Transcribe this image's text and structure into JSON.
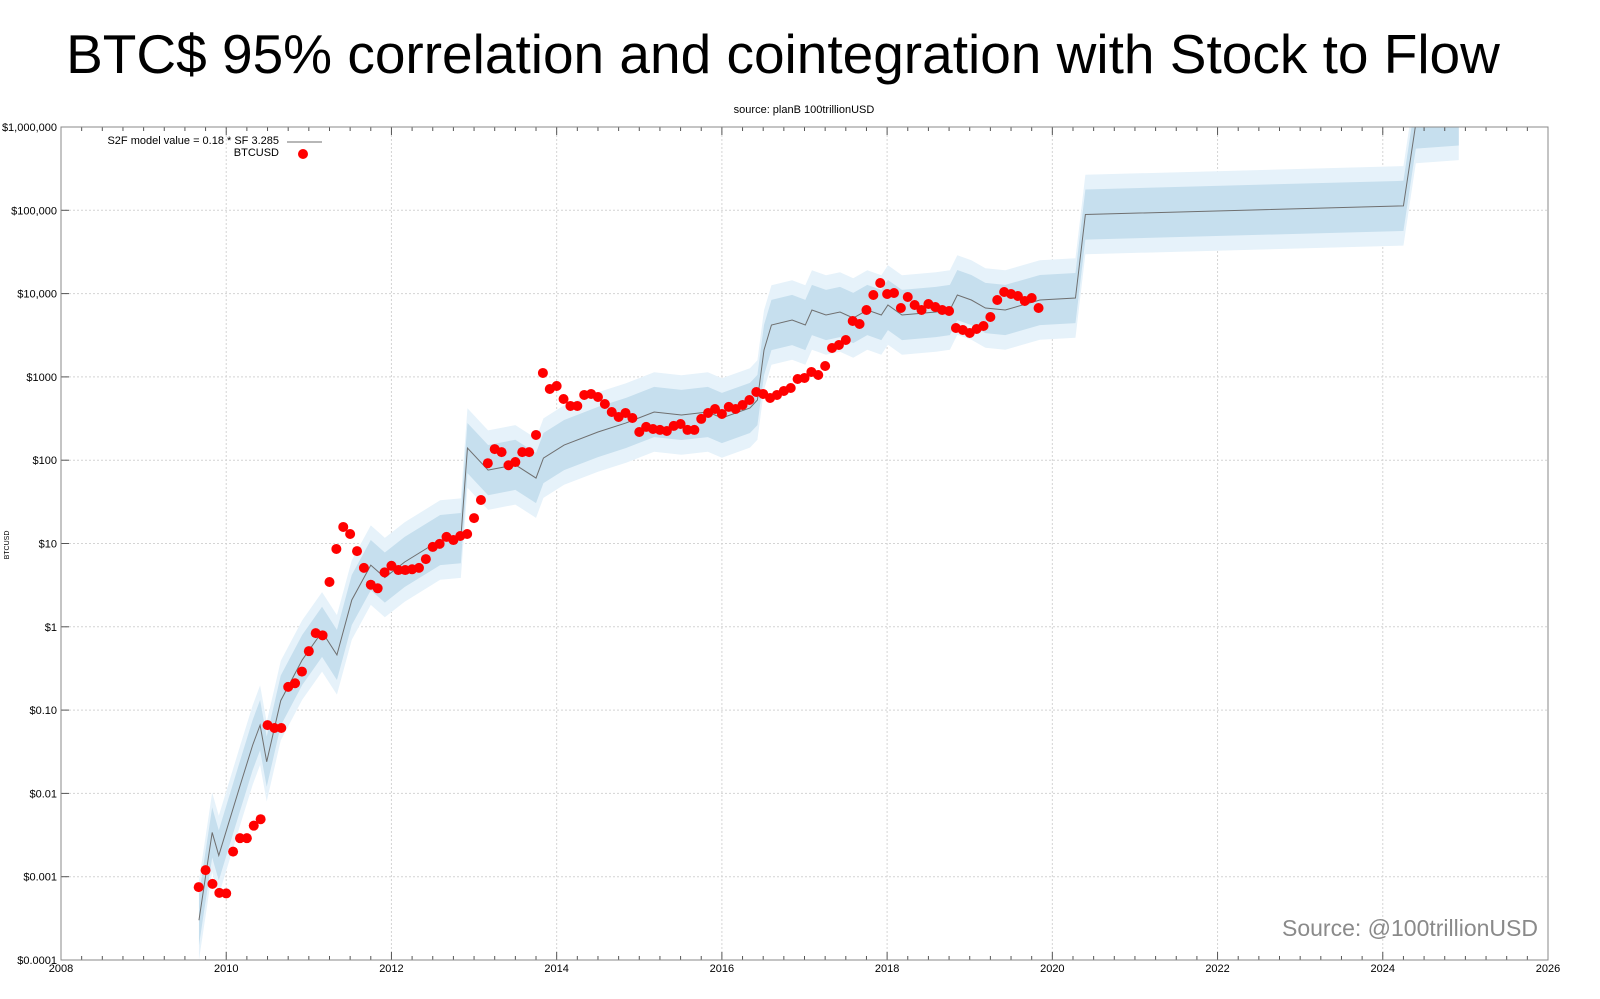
{
  "page_title": "BTC$ 95% correlation and cointegration with Stock to Flow",
  "watermark": "Source: @100trillionUSD",
  "chart_data": {
    "type": "scatter",
    "title": "source: planB 100trillionUSD",
    "xlabel": "",
    "ylabel": "BTCUSD",
    "xlim": [
      2008,
      2026
    ],
    "ylim": [
      0.0001,
      1000000
    ],
    "y_scale": "log",
    "grid": true,
    "legend_position": "top-left",
    "x_ticks": [
      "2008",
      "2010",
      "2012",
      "2014",
      "2016",
      "2018",
      "2020",
      "2022",
      "2024",
      "2026"
    ],
    "y_ticks": [
      {
        "value": 0.0001,
        "label": "$0.0001"
      },
      {
        "value": 0.001,
        "label": "$0.001"
      },
      {
        "value": 0.01,
        "label": "$0.01"
      },
      {
        "value": 0.1,
        "label": "$0.10"
      },
      {
        "value": 1,
        "label": "$1"
      },
      {
        "value": 10,
        "label": "$10"
      },
      {
        "value": 100,
        "label": "$100"
      },
      {
        "value": 1000,
        "label": "$1000"
      },
      {
        "value": 10000,
        "label": "$10,000"
      },
      {
        "value": 100000,
        "label": "$100,000"
      },
      {
        "value": 1000000,
        "label": "$1,000,000"
      }
    ],
    "colors": {
      "btc": "#ff0000",
      "model_line": "#6f6f6f",
      "band_inner": "#c6dfee",
      "band_outer": "#e6f2fa",
      "watermark": "#8a8a8a"
    },
    "series": [
      {
        "name": "S2F model value = 0.18 * SF  3.285",
        "kind": "line",
        "band_inner_factor": 2,
        "band_outer_factor": 3,
        "points": [
          [
            2009.67,
            0.0003
          ],
          [
            2009.83,
            0.0034
          ],
          [
            2009.91,
            0.0018
          ],
          [
            2010.17,
            0.0126
          ],
          [
            2010.32,
            0.038
          ],
          [
            2010.41,
            0.066
          ],
          [
            2010.49,
            0.024
          ],
          [
            2010.66,
            0.13
          ],
          [
            2010.92,
            0.4
          ],
          [
            2011.16,
            0.87
          ],
          [
            2011.34,
            0.46
          ],
          [
            2011.52,
            2.1
          ],
          [
            2011.75,
            5.5
          ],
          [
            2011.92,
            3.9
          ],
          [
            2012.16,
            6.0
          ],
          [
            2012.59,
            11.0
          ],
          [
            2012.84,
            11.6
          ],
          [
            2012.92,
            140
          ],
          [
            2013.17,
            76
          ],
          [
            2013.5,
            88
          ],
          [
            2013.75,
            61
          ],
          [
            2013.84,
            106
          ],
          [
            2014.09,
            152
          ],
          [
            2014.5,
            218
          ],
          [
            2014.84,
            280
          ],
          [
            2015.18,
            379
          ],
          [
            2015.51,
            349
          ],
          [
            2015.83,
            379
          ],
          [
            2016.0,
            321
          ],
          [
            2016.34,
            424
          ],
          [
            2016.43,
            528
          ],
          [
            2016.51,
            2104
          ],
          [
            2016.6,
            4198
          ],
          [
            2016.85,
            4819
          ],
          [
            2017.01,
            4198
          ],
          [
            2017.09,
            6353
          ],
          [
            2017.26,
            5534
          ],
          [
            2017.43,
            6012
          ],
          [
            2017.59,
            5093
          ],
          [
            2017.76,
            6353
          ],
          [
            2017.93,
            5534
          ],
          [
            2018.01,
            7295
          ],
          [
            2018.18,
            5534
          ],
          [
            2018.59,
            6012
          ],
          [
            2018.76,
            6353
          ],
          [
            2018.85,
            9616
          ],
          [
            2019.02,
            8375
          ],
          [
            2019.19,
            6714
          ],
          [
            2019.43,
            6353
          ],
          [
            2019.85,
            8375
          ],
          [
            2020.28,
            8851
          ],
          [
            2020.4,
            89000
          ],
          [
            2024.25,
            113000
          ],
          [
            2024.4,
            1100000
          ],
          [
            2024.92,
            1200000
          ]
        ]
      },
      {
        "name": "BTCUSD",
        "kind": "scatter",
        "points": [
          [
            "2009-09",
            0.00075
          ],
          [
            "2009-10",
            0.0012
          ],
          [
            "2009-11",
            0.00082
          ],
          [
            "2009-12",
            0.00064
          ],
          [
            "2010-01",
            0.00063
          ],
          [
            "2010-02",
            0.002
          ],
          [
            "2010-03",
            0.0029
          ],
          [
            "2010-04",
            0.0029
          ],
          [
            "2010-05",
            0.0041
          ],
          [
            "2010-06",
            0.0049
          ],
          [
            "2010-07",
            0.066
          ],
          [
            "2010-08",
            0.061
          ],
          [
            "2010-09",
            0.061
          ],
          [
            "2010-10",
            0.19
          ],
          [
            "2010-11",
            0.21
          ],
          [
            "2010-12",
            0.29
          ],
          [
            "2011-01",
            0.51
          ],
          [
            "2011-02",
            0.84
          ],
          [
            "2011-03",
            0.79
          ],
          [
            "2011-04",
            3.45
          ],
          [
            "2011-05",
            8.6
          ],
          [
            "2011-06",
            15.8
          ],
          [
            "2011-07",
            13.0
          ],
          [
            "2011-08",
            8.1
          ],
          [
            "2011-09",
            5.1
          ],
          [
            "2011-10",
            3.2
          ],
          [
            "2011-11",
            2.9
          ],
          [
            "2011-12",
            4.5
          ],
          [
            "2012-01",
            5.4
          ],
          [
            "2012-02",
            4.8
          ],
          [
            "2012-03",
            4.8
          ],
          [
            "2012-04",
            4.9
          ],
          [
            "2012-05",
            5.1
          ],
          [
            "2012-06",
            6.5
          ],
          [
            "2012-07",
            9.1
          ],
          [
            "2012-08",
            9.9
          ],
          [
            "2012-09",
            12.0
          ],
          [
            "2012-10",
            11.0
          ],
          [
            "2012-11",
            12.3
          ],
          [
            "2012-12",
            13.0
          ],
          [
            "2013-01",
            20.2
          ],
          [
            "2013-02",
            33.3
          ],
          [
            "2013-03",
            92
          ],
          [
            "2013-04",
            136
          ],
          [
            "2013-05",
            125
          ],
          [
            "2013-06",
            87
          ],
          [
            "2013-07",
            95
          ],
          [
            "2013-08",
            125
          ],
          [
            "2013-09",
            125
          ],
          [
            "2013-10",
            201
          ],
          [
            "2013-11",
            1115
          ],
          [
            "2013-12",
            716
          ],
          [
            "2014-01",
            778
          ],
          [
            "2014-02",
            543
          ],
          [
            "2014-03",
            448
          ],
          [
            "2014-04",
            448
          ],
          [
            "2014-05",
            607
          ],
          [
            "2014-06",
            624
          ],
          [
            "2014-07",
            574
          ],
          [
            "2014-08",
            473
          ],
          [
            "2014-09",
            379
          ],
          [
            "2014-10",
            330
          ],
          [
            "2014-11",
            369
          ],
          [
            "2014-12",
            321
          ],
          [
            "2015-01",
            218
          ],
          [
            "2015-02",
            251
          ],
          [
            "2015-03",
            237
          ],
          [
            "2015-04",
            231
          ],
          [
            "2015-05",
            224
          ],
          [
            "2015-06",
            258
          ],
          [
            "2015-07",
            272
          ],
          [
            "2015-08",
            231
          ],
          [
            "2015-09",
            231
          ],
          [
            "2015-10",
            313
          ],
          [
            "2015-11",
            369
          ],
          [
            "2015-12",
            412
          ],
          [
            "2016-01",
            359
          ],
          [
            "2016-02",
            436
          ],
          [
            "2016-03",
            412
          ],
          [
            "2016-04",
            460
          ],
          [
            "2016-05",
            528
          ],
          [
            "2016-06",
            659
          ],
          [
            "2016-07",
            624
          ],
          [
            "2016-08",
            558
          ],
          [
            "2016-09",
            607
          ],
          [
            "2016-10",
            678
          ],
          [
            "2016-11",
            736
          ],
          [
            "2016-12",
            944
          ],
          [
            "2017-01",
            971
          ],
          [
            "2017-02",
            1146
          ],
          [
            "2017-03",
            1054
          ],
          [
            "2017-04",
            1352
          ],
          [
            "2017-05",
            2223
          ],
          [
            "2017-06",
            2415
          ],
          [
            "2017-07",
            2773
          ],
          [
            "2017-08",
            4688
          ],
          [
            "2017-09",
            4315
          ],
          [
            "2017-10",
            6353
          ],
          [
            "2017-11",
            9616
          ],
          [
            "2017-12",
            13400
          ],
          [
            "2018-01",
            9886
          ],
          [
            "2018-02",
            10160
          ],
          [
            "2018-03",
            6714
          ],
          [
            "2018-04",
            9100
          ],
          [
            "2018-05",
            7295
          ],
          [
            "2018-06",
            6353
          ],
          [
            "2018-07",
            7500
          ],
          [
            "2018-08",
            6902
          ],
          [
            "2018-09",
            6353
          ],
          [
            "2018-10",
            6180
          ],
          [
            "2018-11",
            3864
          ],
          [
            "2018-12",
            3656
          ],
          [
            "2019-01",
            3365
          ],
          [
            "2019-02",
            3758
          ],
          [
            "2019-03",
            4083
          ],
          [
            "2019-04",
            5236
          ],
          [
            "2019-05",
            8375
          ],
          [
            "2019-06",
            10450
          ],
          [
            "2019-07",
            9886
          ],
          [
            "2019-08",
            9354
          ],
          [
            "2019-09",
            8147
          ],
          [
            "2019-10",
            8851
          ],
          [
            "2019-11",
            6714
          ]
        ]
      }
    ]
  }
}
